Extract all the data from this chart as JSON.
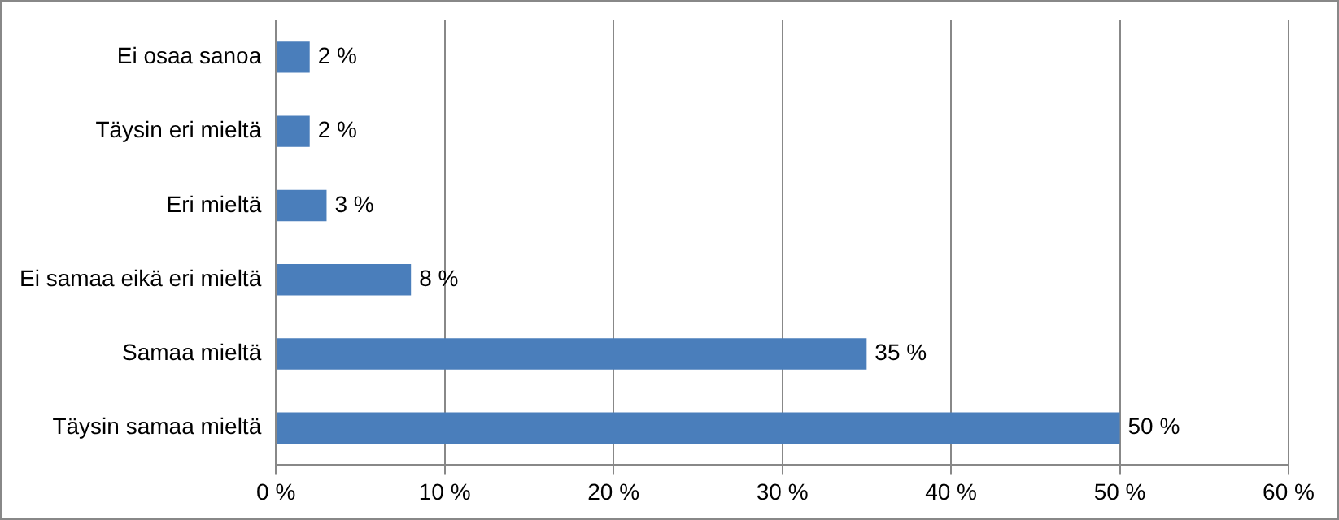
{
  "chart_data": {
    "type": "bar",
    "orientation": "horizontal",
    "categories": [
      "Ei osaa sanoa",
      "Täysin eri mieltä",
      "Eri mieltä",
      "Ei samaa eikä eri mieltä",
      "Samaa mieltä",
      "Täysin samaa mieltä"
    ],
    "values": [
      2,
      2,
      3,
      8,
      35,
      50
    ],
    "value_labels": [
      "2 %",
      "2 %",
      "3 %",
      "8 %",
      "35 %",
      "50 %"
    ],
    "color": "#4a7ebb",
    "xlim": [
      0,
      60
    ],
    "xticks": [
      {
        "value": 0,
        "label": "0 %"
      },
      {
        "value": 10,
        "label": "10 %"
      },
      {
        "value": 20,
        "label": "20 %"
      },
      {
        "value": 30,
        "label": "30 %"
      },
      {
        "value": 40,
        "label": "40 %"
      },
      {
        "value": 50,
        "label": "50 %"
      },
      {
        "value": 60,
        "label": "60 %"
      }
    ],
    "grid": "x"
  }
}
